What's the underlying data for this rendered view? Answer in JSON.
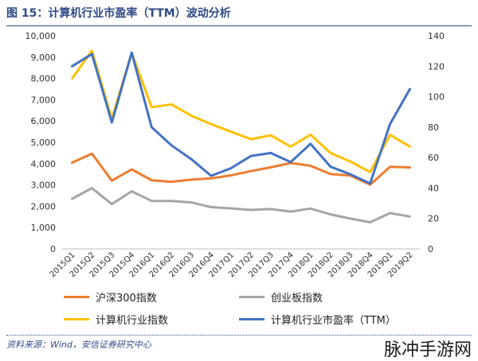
{
  "title": "图 15：计算机行业市盈率（TTM）波动分析",
  "source": "资料来源：Wind，安信证券研究中心",
  "watermark": "脉冲手游网",
  "colors": {
    "hs300": "#ED7D31",
    "cyb": "#A5A5A5",
    "jsj_index": "#FFC000",
    "jsj_pe": "#4472C4",
    "title": "#2E4A86"
  },
  "chart_data": {
    "type": "line",
    "title": "图 15：计算机行业市盈率（TTM）波动分析",
    "categories": [
      "2015Q1",
      "2015Q2",
      "2015Q3",
      "2015Q4",
      "2016Q1",
      "2016Q2",
      "2016Q3",
      "2016Q4",
      "2017Q1",
      "2017Q2",
      "2017Q3",
      "2017Q4",
      "2018Q1",
      "2018Q2",
      "2018Q3",
      "2018Q4",
      "2019Q1",
      "2019Q2"
    ],
    "y_left": {
      "min": 0,
      "max": 10000,
      "ticks": [
        "0",
        "1,000",
        "2,000",
        "3,000",
        "4,000",
        "5,000",
        "6,000",
        "7,000",
        "8,000",
        "9,000",
        "10,000"
      ]
    },
    "y_right": {
      "min": 0,
      "max": 140,
      "ticks": [
        "0",
        "20",
        "40",
        "60",
        "80",
        "100",
        "120",
        "140"
      ]
    },
    "grid": false,
    "legend_position": "bottom",
    "series": [
      {
        "name": "沪深300指数",
        "axis": "left",
        "color": "#ED7D31",
        "values": [
          4050,
          4470,
          3200,
          3730,
          3220,
          3150,
          3250,
          3310,
          3450,
          3650,
          3830,
          4030,
          3900,
          3510,
          3440,
          3010,
          3850,
          3820
        ]
      },
      {
        "name": "创业板指数",
        "axis": "left",
        "color": "#A5A5A5",
        "values": [
          2350,
          2850,
          2100,
          2700,
          2250,
          2250,
          2180,
          1960,
          1900,
          1830,
          1870,
          1750,
          1890,
          1620,
          1420,
          1250,
          1680,
          1520
        ]
      },
      {
        "name": "计算机行业指数",
        "axis": "left",
        "color": "#FFC000",
        "values": [
          8000,
          9300,
          6100,
          9200,
          6650,
          6780,
          6250,
          5850,
          5500,
          5150,
          5330,
          4800,
          5360,
          4500,
          4100,
          3600,
          5350,
          4800
        ]
      },
      {
        "name": "计算机行业市盈率（TTM）",
        "axis": "right",
        "color": "#4472C4",
        "values": [
          120,
          128,
          83,
          129,
          80,
          68,
          59,
          48,
          53,
          61,
          63,
          57,
          69,
          54,
          49,
          43,
          82,
          105
        ]
      }
    ]
  }
}
